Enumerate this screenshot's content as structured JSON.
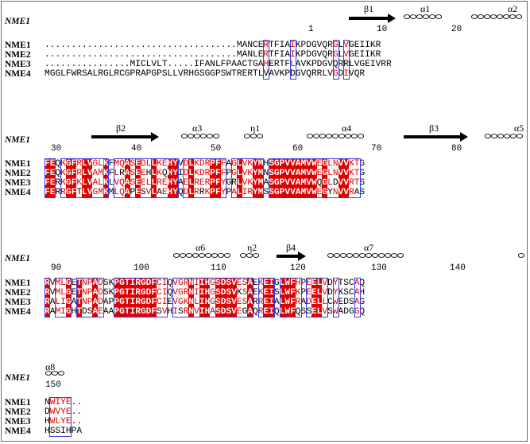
{
  "ref_label": "NME1",
  "names": [
    "NME1",
    "NME2",
    "NME3",
    "NME4"
  ],
  "blocks": [
    {
      "sequences": [
        "....................................MANCERTFIAIKPDGVQRGLVGEIIKR",
        "....................................MANLERTFIAIKPDGVQRGLVGEIIKR",
        "................MICLVLT.....IFANLFPAACTGAHERTFLAVKPDGVQRRLVGEIVRR",
        "MGGLFWRSALRGLRCGPRAPGPSLLVRHGSGGPSWTRERTLVAVKPDGVQRRLVGDIVQR"
      ],
      "numbers": [
        "1",
        "10",
        "20"
      ],
      "ss": [
        "β1",
        "α1",
        "α2"
      ]
    },
    {
      "sequences": [
        "FEQKGFRLVGLKFMQASEDLLKEHYVDLKDRPFFAGLVKYMHSGPVVAMVWEGLNVVKTG",
        "FEQKGFRLVAMKFLRASEEHLKQHYIDLKDRPFFPGLVKYMNSGPVVAMVWEGLNVVKTG",
        "FERKGFKLVALKLVQASEELLREHYAELRERPFYGRLVKYMASGPVVAMVWQGLDVVRTS",
        "FERRGFTLVGMKMLQAPESVLAEHYQDLRRKPFYPALIRYMSSGPVVAMVWEGYNVVRAS"
      ],
      "numbers": [
        "30",
        "40",
        "50",
        "60",
        "70",
        "80"
      ],
      "ss": [
        "β2",
        "α3",
        "η1",
        "α4",
        "β3",
        "α5"
      ]
    },
    {
      "sequences": [
        "RVMLGETNPADSKPGTIRGDFCIQVGRNIIHGSDSVESAEKEIGLWFHPEELVDYTSCAQ",
        "RVMLGETNPADSKPGTIRGDFCIQVGRNIIHGSDSVKSAEKEISLWFKPEELVDYKSCAH",
        "RALIGATNPADAPPGTIRGDFCIEVGKNLIHGSDSVESARREIALWFRADELLCWEDSAG",
        "RAMIGHTDSAEAAPGTIRGDFSVHISRNVIHASDSVEGAQREIQLWFQSSELVSWADGGQ"
      ],
      "numbers": [
        "90",
        "100",
        "110",
        "120",
        "130",
        "140"
      ],
      "ss": [
        "α6",
        "η2",
        "β4",
        "α7"
      ]
    },
    {
      "sequences": [
        "NWIYE..",
        "DWVYE..",
        "HWLYE..",
        "HSSIHPA"
      ],
      "numbers": [
        "150"
      ],
      "ss": [
        "α8"
      ]
    }
  ],
  "colors": {
    "identical_bg": "#dd0000",
    "similar_fg": "#dd0000",
    "box": "#3a3ae0"
  }
}
